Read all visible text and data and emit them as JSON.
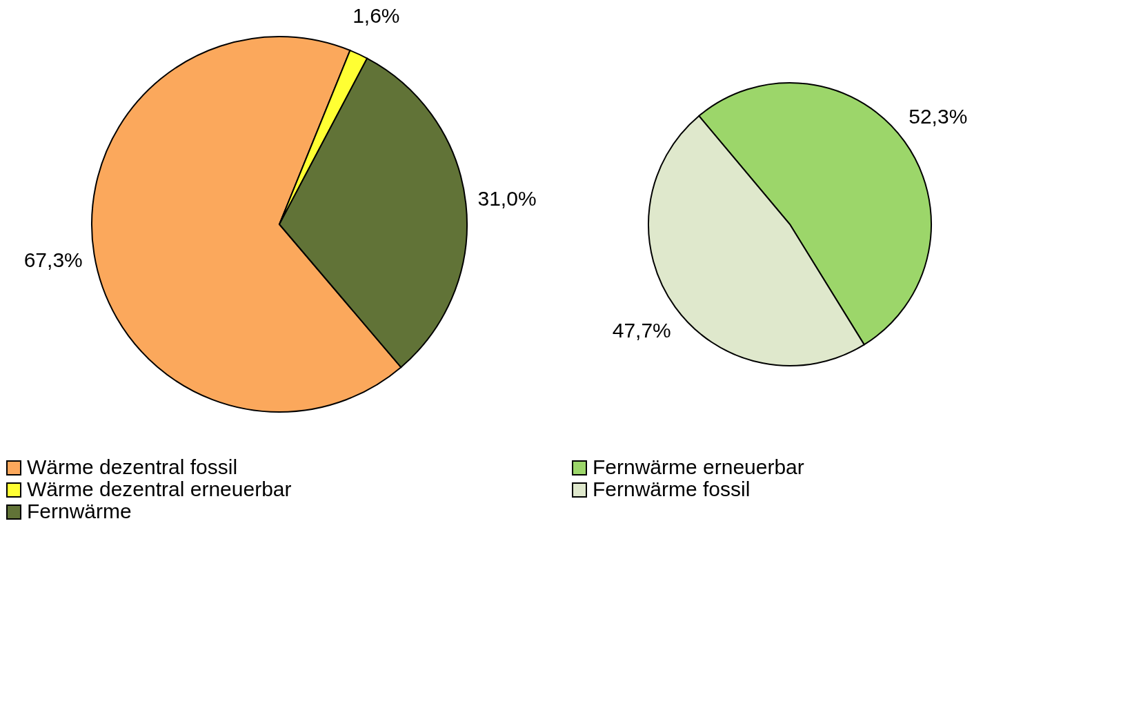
{
  "chart_data": [
    {
      "type": "pie",
      "categories": [
        "Wärme dezentral fossil",
        "Wärme dezentral erneuerbar",
        "Fernwärme"
      ],
      "values": [
        67.3,
        1.6,
        31.0
      ],
      "colors": [
        "#fba85c",
        "#ffff33",
        "#617337"
      ],
      "value_labels": [
        "67,3%",
        "1,6%",
        "31,0%"
      ],
      "legend": "bottom"
    },
    {
      "type": "pie",
      "categories": [
        "Fernwärme erneuerbar",
        "Fernwärme fossil"
      ],
      "values": [
        52.3,
        47.7
      ],
      "colors": [
        "#9cd66a",
        "#dfe8cc"
      ],
      "value_labels": [
        "52,3%",
        "47,7%"
      ],
      "legend": "bottom"
    }
  ]
}
